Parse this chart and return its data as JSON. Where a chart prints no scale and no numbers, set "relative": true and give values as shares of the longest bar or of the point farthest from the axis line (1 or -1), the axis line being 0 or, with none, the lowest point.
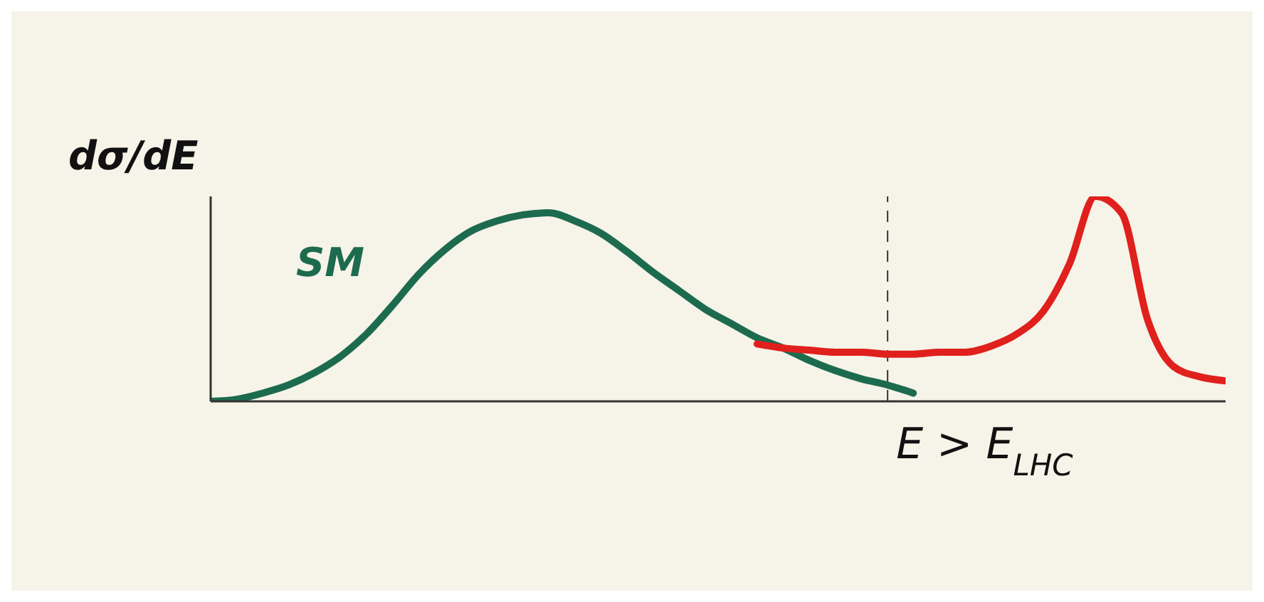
{
  "chart_data": {
    "type": "line",
    "relative": true,
    "ylabel": "dσ/dE",
    "categories": [
      null,
      null,
      null,
      null,
      null,
      null,
      null,
      null,
      null,
      null,
      null,
      null,
      null,
      null,
      null,
      null,
      null,
      null,
      null,
      null,
      null,
      null,
      null,
      null,
      null,
      null,
      null,
      null,
      null,
      null,
      null,
      null,
      null,
      null,
      null,
      null,
      null,
      null,
      null,
      null
    ],
    "series": [
      {
        "name": "SM",
        "color": "#1d6b4f",
        "values": [
          0,
          0.01,
          0.04,
          0.08,
          0.14,
          0.22,
          0.33,
          0.47,
          0.62,
          0.74,
          0.83,
          0.88,
          0.91,
          0.92,
          0.88,
          0.82,
          0.73,
          0.63,
          0.54,
          0.45,
          0.38,
          0.31,
          0.26,
          0.2,
          0.15,
          0.11,
          0.08,
          0.04,
          null,
          null,
          null,
          null,
          null,
          null,
          null,
          null,
          null,
          null,
          null,
          null
        ]
      },
      {
        "color": "#e0201c",
        "values": [
          null,
          null,
          null,
          null,
          null,
          null,
          null,
          null,
          null,
          null,
          null,
          null,
          null,
          null,
          null,
          null,
          null,
          null,
          null,
          null,
          null,
          0.28,
          0.26,
          0.25,
          0.24,
          0.24,
          0.23,
          0.23,
          0.24,
          0.24,
          0.27,
          0.33,
          0.44,
          0.67,
          1,
          0.92,
          0.4,
          0.17,
          0.12,
          0.1
        ]
      }
    ],
    "xlabel": "E > E$_{LHC}$",
    "marker": "none",
    "line_style": "solid"
  }
}
